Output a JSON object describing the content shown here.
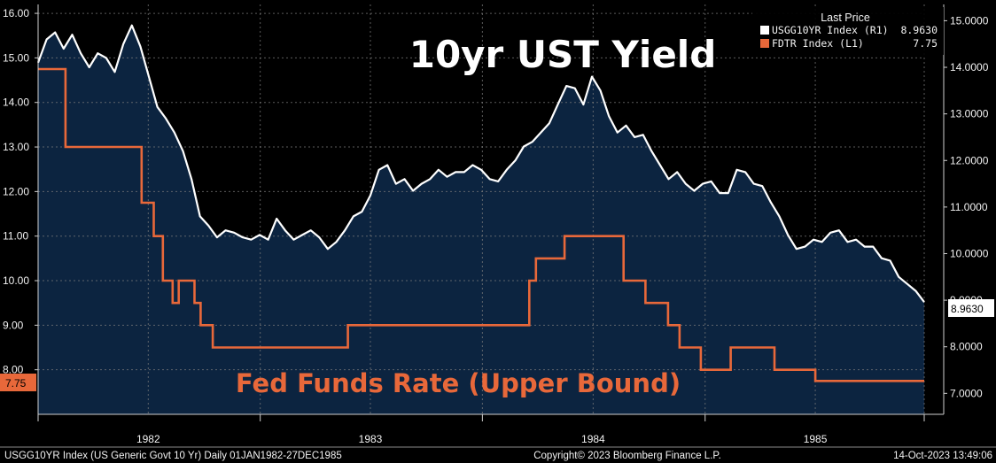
{
  "chart_data": {
    "type": "line",
    "title": "10yr UST Yield",
    "annotation": "Fed Funds Rate (Upper Bound)",
    "x_range": [
      "1982-01-01",
      "1985-12-27"
    ],
    "y_left": {
      "ylim": [
        7.0,
        16.2
      ],
      "ticks": [
        "16.00",
        "15.00",
        "14.00",
        "13.00",
        "12.00",
        "11.00",
        "10.00",
        "9.00",
        "8.00"
      ]
    },
    "y_right": {
      "ylim": [
        6.55,
        15.35
      ],
      "ticks": [
        "15.0000",
        "14.0000",
        "13.0000",
        "12.0000",
        "11.0000",
        "10.0000",
        "9.0000",
        "8.0000",
        "7.0000"
      ]
    },
    "x_ticks": [
      {
        "label": "1982",
        "date": "1982-07-01"
      },
      {
        "label": "1983",
        "date": "1983-07-01"
      },
      {
        "label": "1984",
        "date": "1984-07-01"
      },
      {
        "label": "1985",
        "date": "1985-07-01"
      }
    ],
    "series": [
      {
        "name": "USGG10YR Index",
        "axis": "right",
        "color": "#ffffff",
        "fill": "#0c2440",
        "last_value": "8.9630",
        "x": [
          "1982-01-01",
          "1982-01-15",
          "1982-01-29",
          "1982-02-12",
          "1982-02-26",
          "1982-03-12",
          "1982-03-26",
          "1982-04-09",
          "1982-04-23",
          "1982-05-07",
          "1982-05-21",
          "1982-06-04",
          "1982-06-18",
          "1982-07-02",
          "1982-07-16",
          "1982-07-30",
          "1982-08-13",
          "1982-08-27",
          "1982-09-10",
          "1982-09-24",
          "1982-10-08",
          "1982-10-22",
          "1982-11-05",
          "1982-11-19",
          "1982-12-03",
          "1982-12-17",
          "1982-12-31",
          "1983-01-14",
          "1983-01-28",
          "1983-02-11",
          "1983-02-25",
          "1983-03-11",
          "1983-03-25",
          "1983-04-08",
          "1983-04-22",
          "1983-05-06",
          "1983-05-20",
          "1983-06-03",
          "1983-06-17",
          "1983-07-01",
          "1983-07-15",
          "1983-07-29",
          "1983-08-12",
          "1983-08-26",
          "1983-09-09",
          "1983-09-23",
          "1983-10-07",
          "1983-10-21",
          "1983-11-04",
          "1983-11-18",
          "1983-12-02",
          "1983-12-16",
          "1983-12-30",
          "1984-01-13",
          "1984-01-27",
          "1984-02-10",
          "1984-02-24",
          "1984-03-09",
          "1984-03-23",
          "1984-04-06",
          "1984-04-20",
          "1984-05-04",
          "1984-05-18",
          "1984-06-01",
          "1984-06-15",
          "1984-06-29",
          "1984-07-13",
          "1984-07-27",
          "1984-08-10",
          "1984-08-24",
          "1984-09-07",
          "1984-09-21",
          "1984-10-05",
          "1984-10-19",
          "1984-11-02",
          "1984-11-16",
          "1984-11-30",
          "1984-12-14",
          "1984-12-28",
          "1985-01-11",
          "1985-01-25",
          "1985-02-08",
          "1985-02-22",
          "1985-03-08",
          "1985-03-22",
          "1985-04-05",
          "1985-04-19",
          "1985-05-03",
          "1985-05-17",
          "1985-05-31",
          "1985-06-14",
          "1985-06-28",
          "1985-07-12",
          "1985-07-26",
          "1985-08-09",
          "1985-08-23",
          "1985-09-06",
          "1985-09-20",
          "1985-10-04",
          "1985-10-18",
          "1985-11-01",
          "1985-11-15",
          "1985-11-29",
          "1985-12-13",
          "1985-12-27"
        ],
        "y": [
          14.1,
          14.6,
          14.75,
          14.4,
          14.7,
          14.3,
          14.0,
          14.3,
          14.2,
          13.9,
          14.5,
          14.9,
          14.45,
          13.8,
          13.15,
          12.9,
          12.6,
          12.2,
          11.6,
          10.8,
          10.6,
          10.35,
          10.5,
          10.45,
          10.35,
          10.3,
          10.4,
          10.3,
          10.75,
          10.5,
          10.3,
          10.4,
          10.5,
          10.35,
          10.1,
          10.25,
          10.5,
          10.8,
          10.9,
          11.25,
          11.8,
          11.9,
          11.5,
          11.6,
          11.35,
          11.5,
          11.6,
          11.8,
          11.65,
          11.75,
          11.75,
          11.9,
          11.8,
          11.6,
          11.55,
          11.8,
          12.0,
          12.3,
          12.4,
          12.6,
          12.8,
          13.2,
          13.6,
          13.55,
          13.2,
          13.8,
          13.5,
          12.95,
          12.6,
          12.75,
          12.5,
          12.55,
          12.2,
          11.9,
          11.6,
          11.75,
          11.5,
          11.35,
          11.5,
          11.55,
          11.3,
          11.3,
          11.8,
          11.75,
          11.5,
          11.45,
          11.1,
          10.8,
          10.4,
          10.1,
          10.15,
          10.3,
          10.25,
          10.45,
          10.5,
          10.25,
          10.3,
          10.15,
          10.15,
          9.9,
          9.85,
          9.5,
          9.35,
          9.2,
          8.96
        ]
      },
      {
        "name": "FDTR Index",
        "axis": "left",
        "color": "#e8683a",
        "last_value": "7.75",
        "step": true,
        "x": [
          "1982-01-01",
          "1982-02-15",
          "1982-06-20",
          "1982-07-10",
          "1982-07-25",
          "1982-08-10",
          "1982-08-20",
          "1982-09-15",
          "1982-09-25",
          "1982-10-15",
          "1982-11-05",
          "1982-11-22",
          "1983-05-25",
          "1983-06-20",
          "1983-08-12",
          "1984-03-18",
          "1984-03-29",
          "1984-05-15",
          "1984-08-20",
          "1984-09-25",
          "1984-11-01",
          "1984-11-20",
          "1984-12-05",
          "1984-12-25",
          "1985-01-25",
          "1985-02-12",
          "1985-03-20",
          "1985-03-30",
          "1985-04-25",
          "1985-05-15",
          "1985-07-01",
          "1985-12-14",
          "1985-12-27"
        ],
        "y": [
          14.75,
          13.0,
          11.75,
          11.0,
          10.0,
          9.5,
          10.0,
          9.5,
          9.0,
          8.5,
          8.5,
          8.5,
          9.0,
          9.0,
          9.0,
          10.0,
          10.5,
          11.0,
          10.0,
          9.5,
          9.0,
          8.5,
          8.5,
          8.0,
          8.0,
          8.5,
          8.5,
          8.5,
          8.0,
          8.0,
          7.75,
          7.75,
          7.75
        ]
      }
    ],
    "legend": {
      "position": "top-right",
      "header": "Last Price",
      "entries": [
        {
          "label": "USGG10YR Index  (R1)",
          "value": "8.9630",
          "color": "#ffffff"
        },
        {
          "label": "FDTR Index  (L1)",
          "value": "7.75",
          "color": "#e8683a"
        }
      ]
    }
  },
  "footer": {
    "left": "USGG10YR Index (US Generic Govt 10 Yr)  Daily 01JAN1982-27DEC1985",
    "center": "Copyright© 2023 Bloomberg Finance L.P.",
    "right": "14-Oct-2023 13:49:06"
  },
  "colors": {
    "background": "#000000",
    "plot_fill": "#0c2440",
    "orange": "#e8683a",
    "grid": "#6b6b6b"
  }
}
